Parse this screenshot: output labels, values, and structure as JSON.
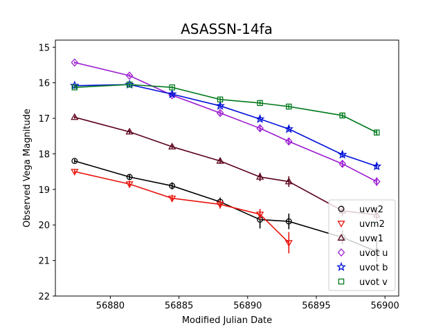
{
  "chart_data": {
    "type": "line",
    "title": "ASASSN-14fa",
    "xlabel": "Modified Julian Date",
    "ylabel": "Observed Vega Magnitude",
    "xlim": [
      56876,
      56901
    ],
    "ylim": [
      22,
      14.8
    ],
    "y_inverted": true,
    "xticks": [
      56880,
      56885,
      56890,
      56895,
      56900
    ],
    "yticks": [
      15,
      16,
      17,
      18,
      19,
      20,
      21,
      22
    ],
    "grid": false,
    "legend_position": "lower-right",
    "series": [
      {
        "name": "uvw2",
        "color": "#000000",
        "marker": "circle",
        "x": [
          56877.4,
          56881.4,
          56884.5,
          56888.0,
          56890.9,
          56893.0,
          56896.9,
          56899.4
        ],
        "y": [
          18.2,
          18.65,
          18.9,
          19.35,
          19.85,
          19.9,
          20.35,
          20.75
        ],
        "err": [
          0.05,
          0.08,
          0.1,
          0.12,
          0.25,
          0.22,
          0.2,
          0.3
        ]
      },
      {
        "name": "uvm2",
        "color": "#e8120c",
        "marker": "triangle-down",
        "x": [
          56877.4,
          56881.4,
          56884.5,
          56888.0,
          56890.9,
          56893.0
        ],
        "y": [
          18.5,
          18.85,
          19.25,
          19.42,
          19.7,
          20.5
        ],
        "err": [
          0.05,
          0.1,
          0.1,
          0.12,
          0.15,
          0.3
        ]
      },
      {
        "name": "uvw1",
        "color": "#5a0019",
        "marker": "triangle-up",
        "x": [
          56877.4,
          56881.4,
          56884.5,
          56888.0,
          56890.9,
          56893.0,
          56896.9,
          56899.4
        ],
        "y": [
          16.97,
          17.38,
          17.8,
          18.2,
          18.65,
          18.78,
          19.6,
          19.72
        ],
        "err": [
          0.04,
          0.05,
          0.05,
          0.08,
          0.12,
          0.15,
          0.15,
          0.12
        ]
      },
      {
        "name": "uvot u",
        "color": "#9b1ad0",
        "marker": "diamond",
        "x": [
          56877.4,
          56881.4,
          56884.5,
          56888.0,
          56890.9,
          56893.0,
          56896.9,
          56899.4
        ],
        "y": [
          15.43,
          15.8,
          16.35,
          16.85,
          17.28,
          17.65,
          18.28,
          18.78
        ],
        "err": [
          0.03,
          0.04,
          0.04,
          0.06,
          0.08,
          0.09,
          0.1,
          0.12
        ]
      },
      {
        "name": "uvot b",
        "color": "#0010d8",
        "marker": "star",
        "x": [
          56877.4,
          56881.4,
          56884.5,
          56888.0,
          56890.9,
          56893.0,
          56896.9,
          56899.4
        ],
        "y": [
          16.08,
          16.05,
          16.32,
          16.65,
          17.02,
          17.3,
          18.02,
          18.35
        ],
        "err": [
          0.03,
          0.03,
          0.04,
          0.05,
          0.06,
          0.07,
          0.08,
          0.08
        ]
      },
      {
        "name": "uvot v",
        "color": "#007a1c",
        "marker": "square",
        "x": [
          56877.4,
          56881.4,
          56884.5,
          56888.0,
          56890.9,
          56893.0,
          56896.9,
          56899.4
        ],
        "y": [
          16.13,
          16.05,
          16.13,
          16.47,
          16.57,
          16.67,
          16.92,
          17.4
        ],
        "err": [
          0.04,
          0.04,
          0.04,
          0.05,
          0.05,
          0.05,
          0.06,
          0.08
        ]
      }
    ]
  }
}
